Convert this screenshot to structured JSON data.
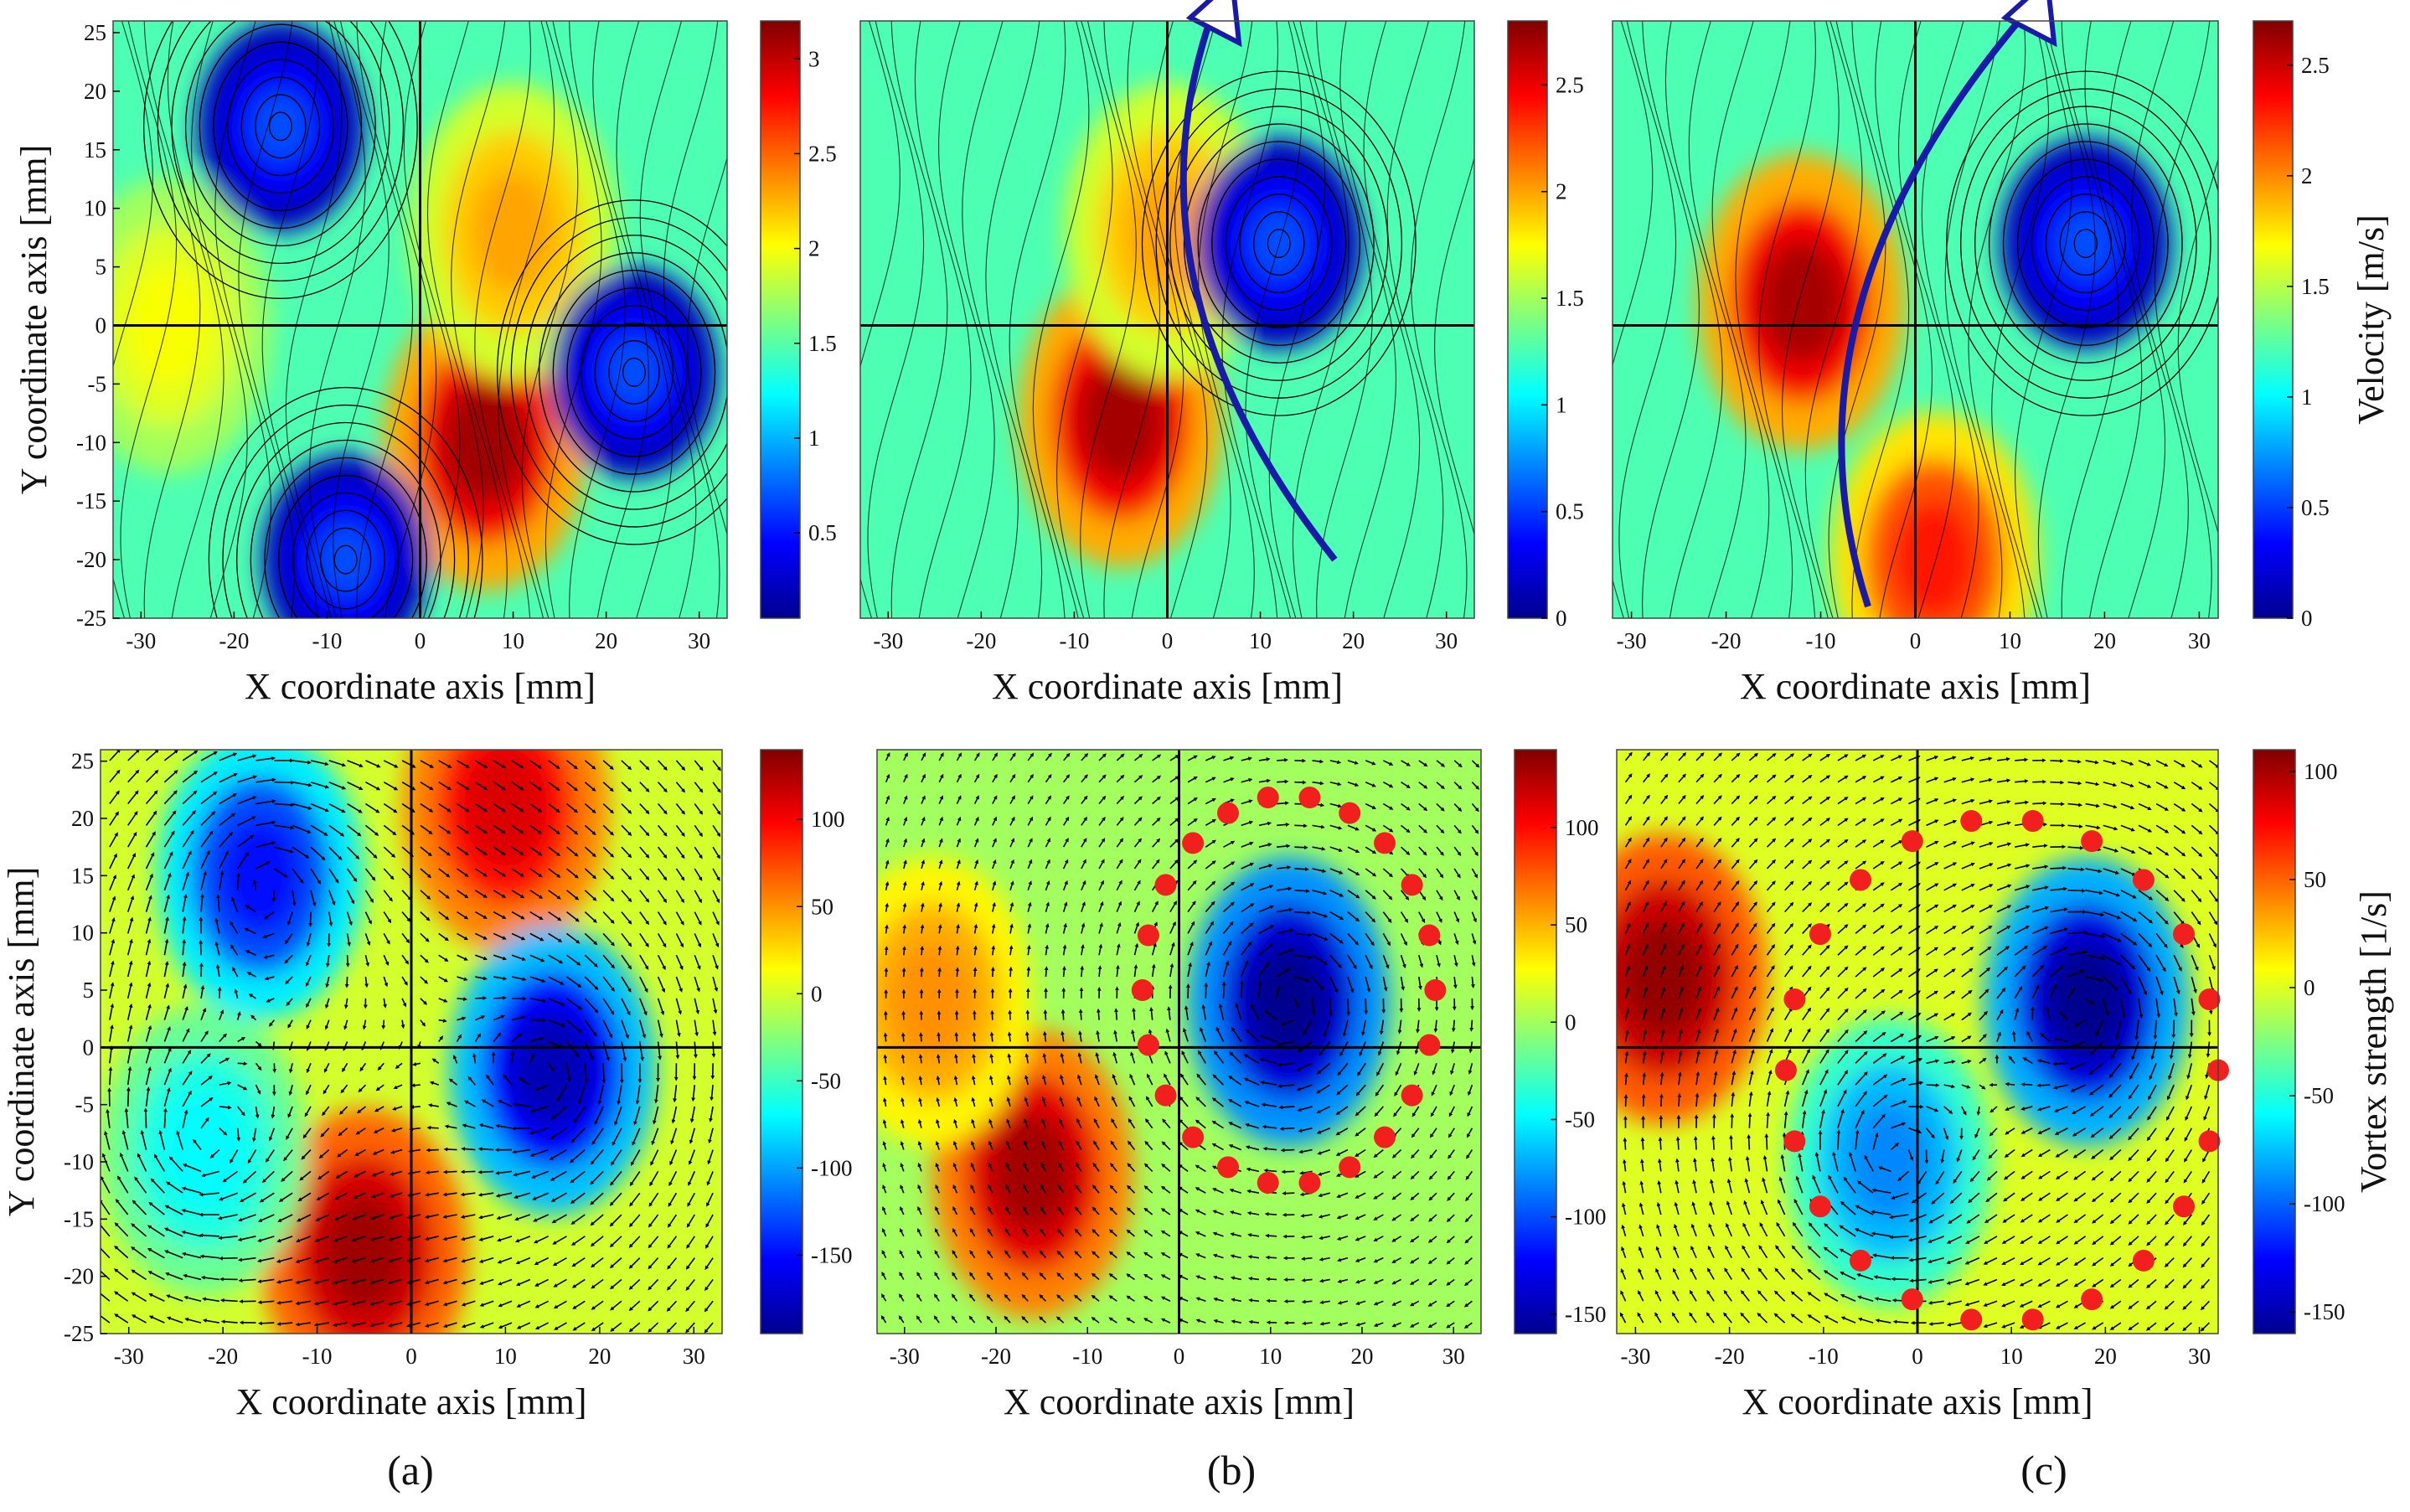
{
  "figure": {
    "panel_labels": [
      "(a)",
      "(b)",
      "(c)"
    ]
  },
  "chart_data": [
    {
      "id": "a-top",
      "type": "heatmap",
      "field": "velocity",
      "xlabel": "X coordinate axis  [mm]",
      "ylabel": "Y coordinate axis  [mm]",
      "xlim": [
        -33,
        33
      ],
      "ylim": [
        -25,
        26
      ],
      "xticks": [
        -30,
        -20,
        -10,
        0,
        10,
        20,
        30
      ],
      "yticks": [
        -25,
        -20,
        -15,
        -10,
        -5,
        0,
        5,
        10,
        15,
        20,
        25
      ],
      "colorbar": {
        "label": "",
        "range": [
          0.05,
          3.2
        ],
        "ticks": [
          0.5,
          1,
          1.5,
          2,
          2.5,
          3
        ]
      },
      "features": [
        {
          "kind": "high",
          "x": 7,
          "y": -10,
          "value": 3.1
        },
        {
          "kind": "high",
          "x": 10,
          "y": 8,
          "value": 2.3
        },
        {
          "kind": "high",
          "x": -27,
          "y": 0,
          "value": 2.0
        },
        {
          "kind": "vortex",
          "x": -15,
          "y": 17
        },
        {
          "kind": "vortex",
          "x": 23,
          "y": -4
        },
        {
          "kind": "vortex",
          "x": -8,
          "y": -20
        }
      ]
    },
    {
      "id": "b-top",
      "type": "heatmap",
      "field": "velocity",
      "xlabel": "X coordinate axis  [mm]",
      "ylabel": "",
      "xlim": [
        -33,
        33
      ],
      "ylim": [
        -25,
        26
      ],
      "xticks": [
        -30,
        -20,
        -10,
        0,
        10,
        20,
        30
      ],
      "yticks": [],
      "colorbar": {
        "label": "",
        "range": [
          0,
          2.8
        ],
        "ticks": [
          0,
          0.5,
          1,
          1.5,
          2,
          2.5
        ]
      },
      "features": [
        {
          "kind": "high",
          "x": -5,
          "y": -8,
          "value": 2.7
        },
        {
          "kind": "high",
          "x": 0,
          "y": 8,
          "value": 2.0
        },
        {
          "kind": "vortex",
          "x": 12,
          "y": 7
        }
      ],
      "annotation": {
        "kind": "arrow",
        "from": [
          18,
          -20
        ],
        "to": [
          5,
          27
        ]
      }
    },
    {
      "id": "c-top",
      "type": "heatmap",
      "field": "velocity",
      "xlabel": "X coordinate axis  [mm]",
      "ylabel": "",
      "xlim": [
        -32,
        32
      ],
      "ylim": [
        -25,
        26
      ],
      "xticks": [
        -30,
        -20,
        -10,
        0,
        10,
        20,
        30
      ],
      "yticks": [],
      "colorbar": {
        "label": "Velocity  [m/s]",
        "range": [
          0,
          2.7
        ],
        "ticks": [
          0,
          0.5,
          1,
          1.5,
          2,
          2.5
        ]
      },
      "features": [
        {
          "kind": "high",
          "x": -12,
          "y": 2,
          "value": 2.6
        },
        {
          "kind": "high",
          "x": 2,
          "y": -20,
          "value": 2.3
        },
        {
          "kind": "vortex",
          "x": 18,
          "y": 7
        }
      ],
      "annotation": {
        "kind": "arrow",
        "from": [
          -5,
          -24
        ],
        "to": [
          12,
          27
        ]
      }
    },
    {
      "id": "a-bottom",
      "type": "heatmap",
      "field": "vortex strength",
      "xlabel": "X coordinate axis  [mm]",
      "ylabel": "Y coordinate axis  [mm]",
      "xlim": [
        -33,
        33
      ],
      "ylim": [
        -25,
        26
      ],
      "xticks": [
        -30,
        -20,
        -10,
        0,
        10,
        20,
        30
      ],
      "yticks": [
        -25,
        -20,
        -15,
        -10,
        -5,
        0,
        5,
        10,
        15,
        20,
        25
      ],
      "colorbar": {
        "label": "",
        "range": [
          -195,
          140
        ],
        "ticks": [
          -150,
          -100,
          -50,
          0,
          50,
          100
        ]
      },
      "features": [
        {
          "kind": "high",
          "x": -5,
          "y": -18,
          "value": 130
        },
        {
          "kind": "high",
          "x": 10,
          "y": 21,
          "value": 110
        },
        {
          "kind": "low",
          "x": -16,
          "y": 15,
          "value": -150
        },
        {
          "kind": "low",
          "x": 15,
          "y": -2,
          "value": -180
        },
        {
          "kind": "low",
          "x": -22,
          "y": -9,
          "value": -70
        }
      ]
    },
    {
      "id": "b-bottom",
      "type": "heatmap",
      "field": "vortex strength",
      "xlabel": "X coordinate axis  [mm]",
      "ylabel": "",
      "xlim": [
        -33,
        33
      ],
      "ylim": [
        -25,
        26
      ],
      "xticks": [
        -30,
        -20,
        -10,
        0,
        10,
        20,
        30
      ],
      "yticks": [],
      "colorbar": {
        "label": "",
        "range": [
          -160,
          140
        ],
        "ticks": [
          -150,
          -100,
          -50,
          0,
          50,
          100
        ]
      },
      "features": [
        {
          "kind": "high",
          "x": -16,
          "y": -11,
          "value": 130
        },
        {
          "kind": "high",
          "x": -27,
          "y": 4,
          "value": 60
        },
        {
          "kind": "low",
          "x": 12,
          "y": 4,
          "value": -160
        }
      ],
      "boundary": {
        "cx": 12,
        "cy": 5,
        "rx": 16,
        "ry": 17
      }
    },
    {
      "id": "c-bottom",
      "type": "heatmap",
      "field": "vortex strength",
      "xlabel": "X coordinate axis  [mm]",
      "ylabel": "",
      "xlim": [
        -32,
        32
      ],
      "ylim": [
        -25,
        26
      ],
      "xticks": [
        -30,
        -20,
        -10,
        0,
        10,
        20,
        30
      ],
      "yticks": [],
      "colorbar": {
        "label": "Vortex strength  [1/s]",
        "range": [
          -160,
          110
        ],
        "ticks": [
          -150,
          -100,
          -50,
          0,
          50,
          100
        ]
      },
      "features": [
        {
          "kind": "high",
          "x": -27,
          "y": 6,
          "value": 105
        },
        {
          "kind": "low",
          "x": 18,
          "y": 4,
          "value": -160
        },
        {
          "kind": "low",
          "x": -3,
          "y": -10,
          "value": -90
        }
      ],
      "boundary": {
        "cx": 9,
        "cy": -2,
        "rx": 23,
        "ry": 22
      }
    }
  ]
}
